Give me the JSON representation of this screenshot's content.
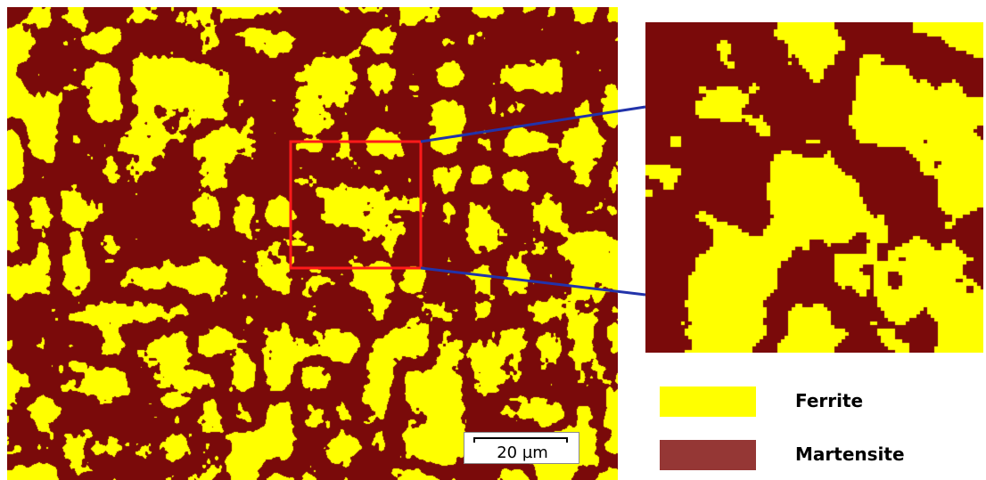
{
  "image": {
    "description_colors": {
      "ferrite": "#ffff00",
      "martensite": "#7a0a0a",
      "roi_box": "#ff1a1a",
      "connector": "#2233aa"
    }
  },
  "scale_bar": {
    "label": "20 µm"
  },
  "legend": [
    {
      "label": "Ferrite",
      "color": "#ffff00"
    },
    {
      "label": "Martensite",
      "color": "#953735"
    }
  ]
}
